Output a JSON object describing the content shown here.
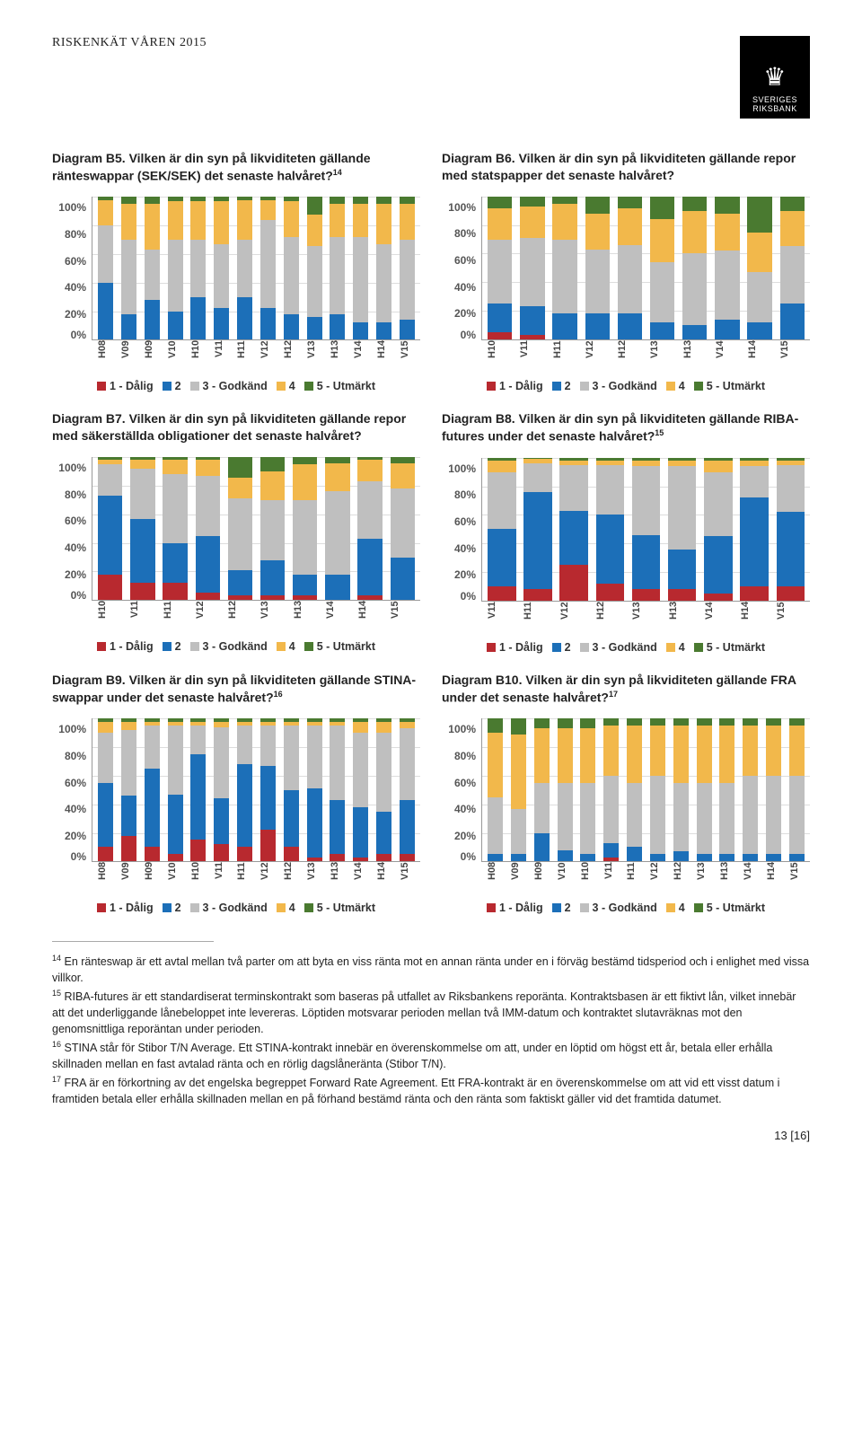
{
  "doc_heading": "RISKENKÄT VÅREN 2015",
  "logo": {
    "org": "SVERIGES RIKSBANK"
  },
  "colors": {
    "c1": "#b8292f",
    "c2": "#1c6fb8",
    "c3": "#bfbfbf",
    "c4": "#f2b84b",
    "c5": "#4a7a30",
    "grid": "#dddddd",
    "axis": "#999999",
    "bg": "#ffffff"
  },
  "legend_labels": [
    "1 - Dålig",
    "2",
    "3 - Godkänd",
    "4",
    "5 - Utmärkt"
  ],
  "y_ticks": [
    "100%",
    "80%",
    "60%",
    "40%",
    "20%",
    "0%"
  ],
  "charts": [
    {
      "id": "B5",
      "title_pre": "Diagram B5. Vilken är din syn på likviditeten gällande ränteswappar (SEK/SEK) det senaste halvåret?",
      "sup": "14",
      "categories": [
        "H08",
        "V09",
        "H09",
        "V10",
        "H10",
        "V11",
        "H11",
        "V12",
        "H12",
        "V13",
        "H13",
        "V14",
        "H14",
        "V15"
      ],
      "series": [
        [
          0,
          0,
          0,
          0,
          0,
          0,
          0,
          0,
          0,
          0,
          0,
          0,
          0,
          0
        ],
        [
          40,
          18,
          28,
          20,
          30,
          22,
          30,
          22,
          18,
          16,
          18,
          12,
          12,
          14
        ],
        [
          40,
          52,
          35,
          50,
          40,
          45,
          40,
          62,
          54,
          50,
          54,
          60,
          55,
          56
        ],
        [
          18,
          25,
          32,
          27,
          27,
          30,
          28,
          14,
          25,
          22,
          23,
          23,
          28,
          25
        ],
        [
          2,
          5,
          5,
          3,
          3,
          3,
          2,
          2,
          3,
          12,
          5,
          5,
          5,
          5
        ]
      ]
    },
    {
      "id": "B6",
      "title_pre": "Diagram B6. Vilken är din syn på likviditeten gällande repor med statspapper det senaste halvåret?",
      "categories": [
        "H10",
        "V11",
        "H11",
        "V12",
        "H12",
        "V13",
        "H13",
        "V14",
        "H14",
        "V15"
      ],
      "series": [
        [
          5,
          3,
          0,
          0,
          0,
          0,
          0,
          0,
          0,
          0
        ],
        [
          20,
          20,
          18,
          18,
          18,
          12,
          10,
          14,
          12,
          25
        ],
        [
          45,
          48,
          52,
          45,
          48,
          42,
          50,
          48,
          35,
          40
        ],
        [
          22,
          22,
          25,
          25,
          26,
          30,
          30,
          26,
          28,
          25
        ],
        [
          8,
          7,
          5,
          12,
          8,
          16,
          10,
          12,
          25,
          10
        ]
      ]
    },
    {
      "id": "B7",
      "title_pre": "Diagram B7. Vilken är din syn på likviditeten gällande repor med säkerställda obligationer det senaste halvåret?",
      "categories": [
        "H10",
        "V11",
        "H11",
        "V12",
        "H12",
        "V13",
        "H13",
        "V14",
        "H14",
        "V15"
      ],
      "series": [
        [
          18,
          12,
          12,
          5,
          3,
          3,
          3,
          0,
          3,
          0
        ],
        [
          55,
          45,
          28,
          40,
          18,
          25,
          15,
          18,
          40,
          30
        ],
        [
          22,
          35,
          48,
          42,
          50,
          42,
          52,
          58,
          40,
          48
        ],
        [
          3,
          6,
          10,
          11,
          15,
          20,
          25,
          20,
          15,
          18
        ],
        [
          2,
          2,
          2,
          2,
          14,
          10,
          5,
          4,
          2,
          4
        ]
      ]
    },
    {
      "id": "B8",
      "title_pre": "Diagram B8. Vilken är din syn på likviditeten gällande RIBA-futures under det senaste halvåret?",
      "sup": "15",
      "categories": [
        "V11",
        "H11",
        "V12",
        "H12",
        "V13",
        "H13",
        "V14",
        "H14",
        "V15"
      ],
      "series": [
        [
          10,
          8,
          25,
          12,
          8,
          8,
          5,
          10,
          10
        ],
        [
          40,
          68,
          38,
          48,
          38,
          28,
          40,
          62,
          52
        ],
        [
          40,
          20,
          32,
          35,
          48,
          58,
          45,
          22,
          33
        ],
        [
          8,
          3,
          3,
          3,
          4,
          4,
          8,
          4,
          3
        ],
        [
          2,
          1,
          2,
          2,
          2,
          2,
          2,
          2,
          2
        ]
      ]
    },
    {
      "id": "B9",
      "title_pre": "Diagram B9. Vilken är din syn på likviditeten gällande STINA-swappar under det senaste halvåret?",
      "sup": "16",
      "categories": [
        "H08",
        "V09",
        "H09",
        "V10",
        "H10",
        "V11",
        "H11",
        "V12",
        "H12",
        "V13",
        "H13",
        "V14",
        "H14",
        "V15"
      ],
      "series": [
        [
          10,
          18,
          10,
          5,
          15,
          12,
          10,
          22,
          10,
          3,
          5,
          3,
          5,
          5
        ],
        [
          45,
          28,
          55,
          42,
          60,
          32,
          58,
          45,
          40,
          48,
          38,
          35,
          30,
          38
        ],
        [
          35,
          46,
          30,
          48,
          20,
          50,
          27,
          28,
          45,
          44,
          52,
          52,
          55,
          50
        ],
        [
          8,
          6,
          3,
          3,
          3,
          4,
          3,
          3,
          3,
          3,
          3,
          8,
          8,
          5
        ],
        [
          2,
          2,
          2,
          2,
          2,
          2,
          2,
          2,
          2,
          2,
          2,
          2,
          2,
          2
        ]
      ]
    },
    {
      "id": "B10",
      "title_pre": "Diagram B10. Vilken är din syn på likviditeten gällande FRA under det senaste halvåret?",
      "sup": "17",
      "categories": [
        "H08",
        "V09",
        "H09",
        "V10",
        "H10",
        "V11",
        "H11",
        "V12",
        "H12",
        "V13",
        "H13",
        "V14",
        "H14",
        "V15"
      ],
      "series": [
        [
          0,
          0,
          0,
          0,
          0,
          3,
          0,
          0,
          0,
          0,
          0,
          0,
          0,
          0
        ],
        [
          5,
          5,
          20,
          8,
          5,
          10,
          10,
          5,
          7,
          5,
          5,
          5,
          5,
          5
        ],
        [
          40,
          32,
          35,
          47,
          50,
          47,
          45,
          55,
          48,
          50,
          50,
          55,
          55,
          55
        ],
        [
          45,
          52,
          38,
          38,
          38,
          35,
          40,
          35,
          40,
          40,
          40,
          35,
          35,
          35
        ],
        [
          10,
          11,
          7,
          7,
          7,
          5,
          5,
          5,
          5,
          5,
          5,
          5,
          5,
          5
        ]
      ]
    }
  ],
  "footnotes": [
    {
      "num": "14",
      "text": "En ränteswap är ett avtal mellan två parter om att byta en viss ränta mot en annan ränta under en i förväg bestämd tidsperiod och i enlighet med vissa villkor."
    },
    {
      "num": "15",
      "text": "RIBA-futures är ett standardiserat terminskontrakt som baseras på utfallet av Riksbankens reporänta. Kontraktsbasen är ett fiktivt lån, vilket innebär att det underliggande lånebeloppet inte levereras. Löptiden motsvarar perioden mellan två IMM-datum och kontraktet slutavräknas mot den genomsnittliga reporäntan under perioden."
    },
    {
      "num": "16",
      "text": "STINA står för Stibor T/N Average. Ett STINA-kontrakt innebär en överenskommelse om att, under en löptid om högst ett år, betala eller erhålla skillnaden mellan en fast avtalad ränta och en rörlig dagslåneränta (Stibor T/N)."
    },
    {
      "num": "17",
      "text": "FRA är en förkortning av det engelska begreppet Forward Rate Agreement. Ett FRA-kontrakt är en överenskommelse om att vid ett visst datum i framtiden betala eller erhålla skillnaden mellan en på förhand bestämd ränta och den ränta som faktiskt gäller vid det framtida datumet."
    }
  ],
  "page_number": "13 [16]"
}
